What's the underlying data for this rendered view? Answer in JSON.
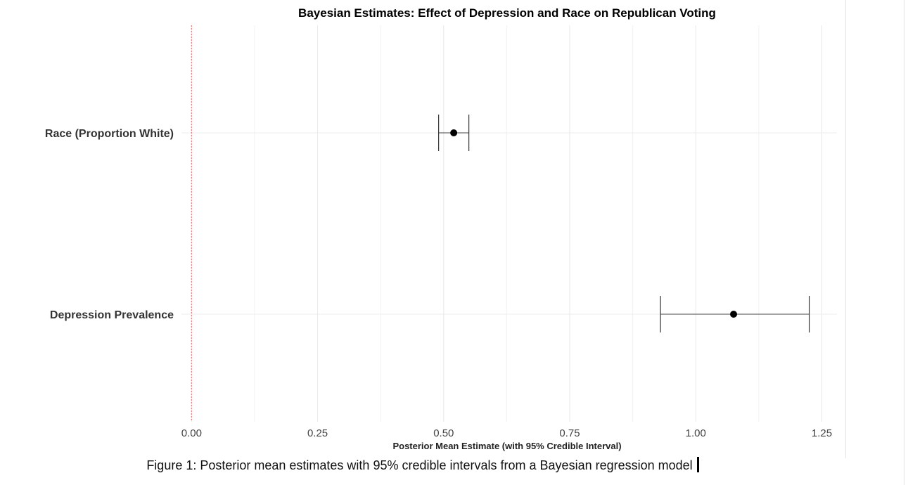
{
  "chart_data": {
    "type": "forest",
    "title": "Bayesian Estimates: Effect of Depression and Race on Republican Voting",
    "xlabel": "Posterior Mean Estimate (with 95% Credible Interval)",
    "ylabel": "",
    "xlim": [
      -0.02,
      1.28
    ],
    "xticks": [
      {
        "value": 0.0,
        "label": "0.00"
      },
      {
        "value": 0.25,
        "label": "0.25"
      },
      {
        "value": 0.5,
        "label": "0.50"
      },
      {
        "value": 0.75,
        "label": "0.75"
      },
      {
        "value": 1.0,
        "label": "1.00"
      },
      {
        "value": 1.25,
        "label": "1.25"
      }
    ],
    "reference_line": {
      "x": 0,
      "style": "dotted",
      "color": "#f08080"
    },
    "grid": true,
    "estimates": [
      {
        "label": "Race (Proportion White)",
        "mean": 0.52,
        "lower": 0.49,
        "upper": 0.55
      },
      {
        "label": "Depression Prevalence",
        "mean": 1.075,
        "lower": 0.93,
        "upper": 1.225
      }
    ]
  },
  "caption": "Figure 1: Posterior mean estimates with 95% credible intervals from a Bayesian regression model"
}
